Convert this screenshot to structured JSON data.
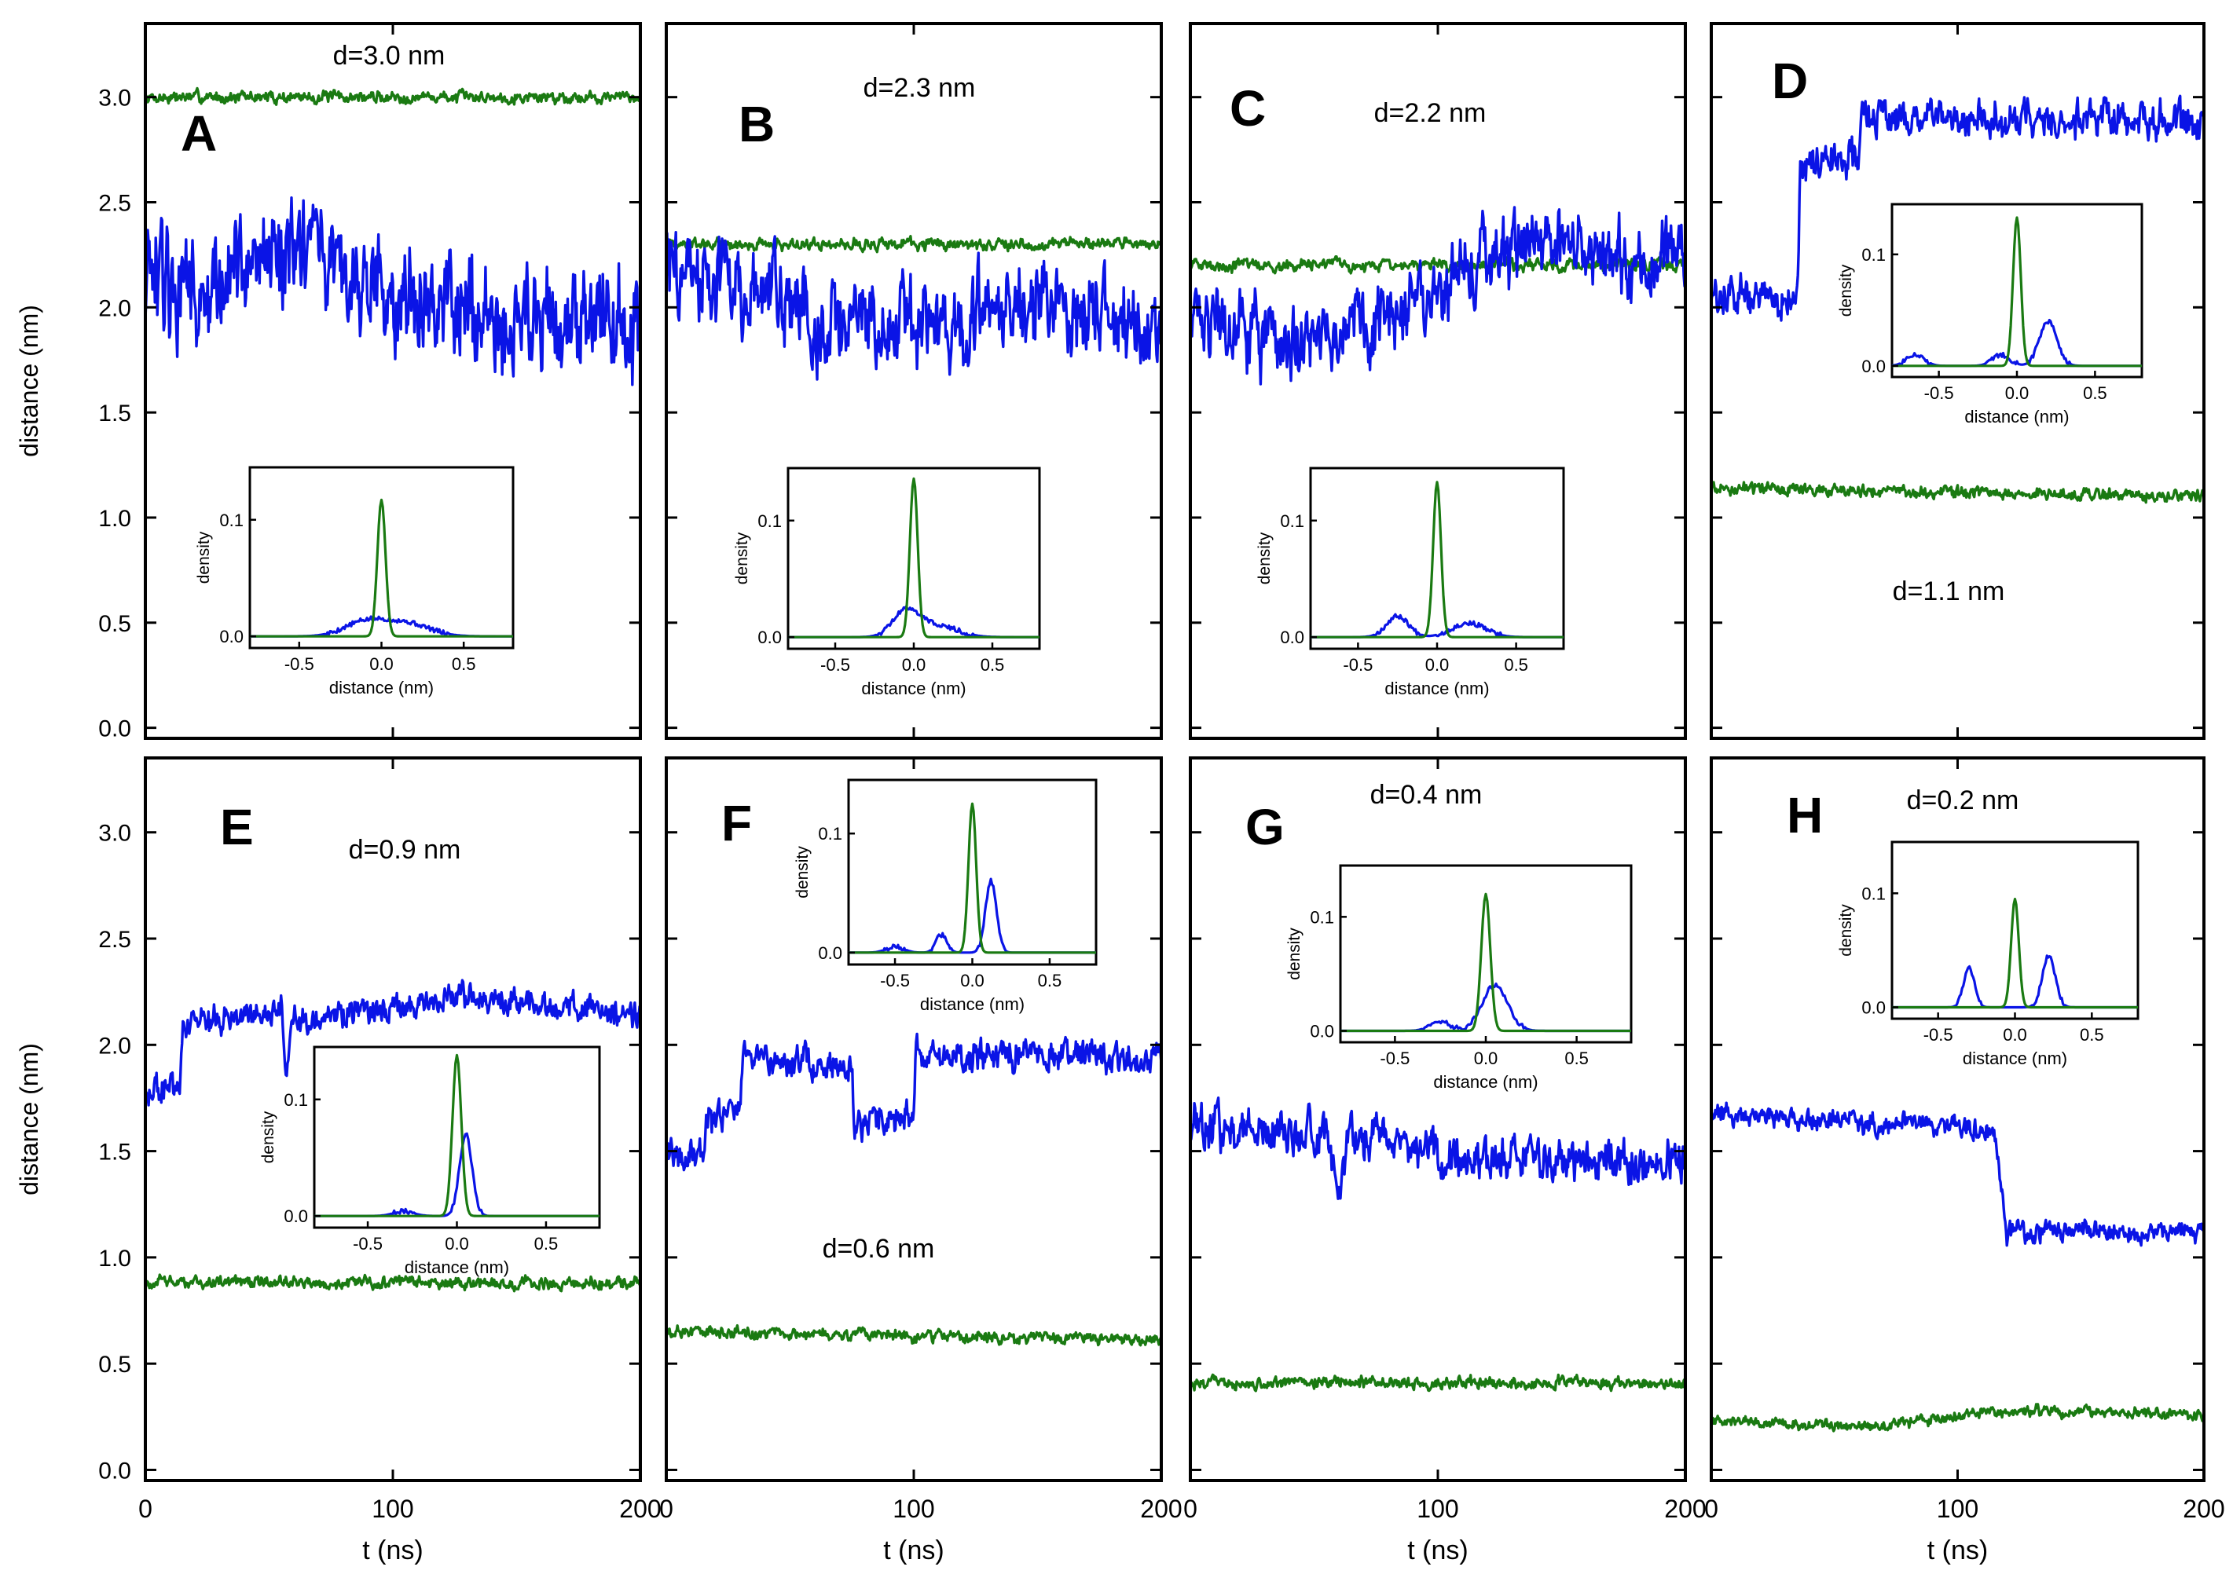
{
  "chart_data": {
    "type": "line",
    "title": "",
    "rows": [
      {
        "ylabel": "distance (nm)",
        "yticks": [
          "0.0",
          "0.5",
          "1.0",
          "1.5",
          "2.0",
          "2.5",
          "3.0"
        ],
        "ylim": [
          -0.05,
          3.35
        ]
      },
      {
        "ylabel": "distance (nm)",
        "yticks": [
          "0.0",
          "0.5",
          "1.0",
          "1.5",
          "2.0",
          "2.5",
          "3.0"
        ],
        "ylim": [
          -0.05,
          3.35
        ]
      }
    ],
    "x_tick_values": [
      0,
      100,
      200
    ],
    "x_tick_labels": [
      "0",
      "100",
      "200"
    ],
    "xlabel": "t (ns)",
    "xlim": [
      0,
      200
    ],
    "colors": {
      "green_series": "#1a7a12",
      "blue_series": "#0a14e6"
    },
    "inset_axes": {
      "xlabel": "distance (nm)",
      "ylabel": "density",
      "xticks": [
        "-0.5",
        "0.0",
        "0.5"
      ],
      "yticks": [
        "0.0",
        "0.1"
      ],
      "xlim": [
        -0.8,
        0.8
      ],
      "ylim": [
        -0.01,
        0.145
      ]
    },
    "panels": [
      {
        "letter": "A",
        "annotation": "d=3.0 nm",
        "green": {
          "level": 3.0,
          "noise": 0.022,
          "segments": [
            [
              0,
              3.0
            ]
          ]
        },
        "blue": {
          "noise": 0.2,
          "segments": [
            [
              0,
              2.1
            ],
            [
              25,
              2.05
            ],
            [
              50,
              2.3
            ],
            [
              100,
              2.05
            ],
            [
              150,
              1.95
            ],
            [
              200,
              1.9
            ]
          ]
        },
        "inset": {
          "green_peak": 0.117,
          "green_center": 0.0,
          "green_width": 0.035,
          "blue_peaks": [
            {
              "center": -0.1,
              "height": 0.012,
              "width": 0.18
            },
            {
              "center": 0.15,
              "height": 0.011,
              "width": 0.2
            }
          ]
        }
      },
      {
        "letter": "B",
        "annotation": "d=2.3 nm",
        "green": {
          "level": 2.3,
          "noise": 0.022,
          "segments": [
            [
              0,
              2.3
            ]
          ]
        },
        "blue": {
          "noise": 0.16,
          "segments": [
            [
              0,
              2.2
            ],
            [
              40,
              2.05
            ],
            [
              70,
              1.9
            ],
            [
              110,
              1.95
            ],
            [
              150,
              2.05
            ],
            [
              200,
              1.85
            ]
          ]
        },
        "inset": {
          "green_peak": 0.136,
          "green_center": 0.0,
          "green_width": 0.035,
          "blue_peaks": [
            {
              "center": -0.05,
              "height": 0.022,
              "width": 0.12
            },
            {
              "center": 0.15,
              "height": 0.01,
              "width": 0.18
            }
          ]
        }
      },
      {
        "letter": "C",
        "annotation": "d=2.2 nm",
        "green": {
          "level": 2.2,
          "noise": 0.022,
          "segments": [
            [
              0,
              2.2
            ]
          ]
        },
        "blue": {
          "noise": 0.13,
          "segments": [
            [
              0,
              2.0
            ],
            [
              40,
              1.8
            ],
            [
              80,
              1.9
            ],
            [
              110,
              2.2
            ],
            [
              140,
              2.3
            ],
            [
              200,
              2.2
            ]
          ]
        },
        "inset": {
          "green_peak": 0.133,
          "green_center": 0.0,
          "green_width": 0.035,
          "blue_peaks": [
            {
              "center": -0.25,
              "height": 0.018,
              "width": 0.1
            },
            {
              "center": 0.2,
              "height": 0.012,
              "width": 0.15
            }
          ]
        }
      },
      {
        "letter": "D",
        "annotation": "d=1.1 nm",
        "green": {
          "level": 1.12,
          "noise": 0.022,
          "segments": [
            [
              0,
              1.14
            ],
            [
              200,
              1.1
            ]
          ]
        },
        "blue": {
          "noise": 0.07,
          "segments": [
            [
              0,
              2.05
            ],
            [
              35,
              2.05
            ],
            [
              36,
              2.65
            ],
            [
              60,
              2.7
            ],
            [
              61,
              2.9
            ],
            [
              200,
              2.9
            ]
          ]
        },
        "inset": {
          "green_peak": 0.133,
          "green_center": 0.0,
          "green_width": 0.035,
          "blue_peaks": [
            {
              "center": -0.65,
              "height": 0.01,
              "width": 0.08
            },
            {
              "center": -0.1,
              "height": 0.01,
              "width": 0.08
            },
            {
              "center": 0.2,
              "height": 0.04,
              "width": 0.08
            }
          ]
        }
      },
      {
        "letter": "E",
        "annotation": "d=0.9 nm",
        "green": {
          "level": 0.88,
          "noise": 0.022,
          "segments": [
            [
              0,
              0.88
            ]
          ]
        },
        "blue": {
          "noise": 0.05,
          "segments": [
            [
              0,
              1.8
            ],
            [
              14,
              1.8
            ],
            [
              15,
              2.1
            ],
            [
              55,
              2.15
            ],
            [
              57,
              1.85
            ],
            [
              60,
              2.12
            ],
            [
              130,
              2.22
            ],
            [
              200,
              2.15
            ]
          ]
        },
        "inset": {
          "green_peak": 0.138,
          "green_center": 0.0,
          "green_width": 0.035,
          "blue_peaks": [
            {
              "center": 0.05,
              "height": 0.07,
              "width": 0.05
            },
            {
              "center": -0.3,
              "height": 0.004,
              "width": 0.08
            }
          ]
        }
      },
      {
        "letter": "F",
        "annotation": "d=0.6 nm",
        "green": {
          "level": 0.63,
          "noise": 0.022,
          "segments": [
            [
              0,
              0.65
            ],
            [
              200,
              0.61
            ]
          ]
        },
        "blue": {
          "noise": 0.06,
          "segments": [
            [
              0,
              1.5
            ],
            [
              15,
              1.45
            ],
            [
              16,
              1.65
            ],
            [
              30,
              1.7
            ],
            [
              31,
              1.95
            ],
            [
              75,
              1.9
            ],
            [
              76,
              1.6
            ],
            [
              100,
              1.7
            ],
            [
              101,
              1.95
            ],
            [
              200,
              1.95
            ]
          ]
        },
        "inset": {
          "green_peak": 0.125,
          "green_center": 0.0,
          "green_width": 0.035,
          "blue_peaks": [
            {
              "center": 0.12,
              "height": 0.06,
              "width": 0.05
            },
            {
              "center": -0.2,
              "height": 0.015,
              "width": 0.05
            },
            {
              "center": -0.5,
              "height": 0.005,
              "width": 0.08
            }
          ]
        }
      },
      {
        "letter": "G",
        "annotation": "d=0.4 nm",
        "green": {
          "level": 0.41,
          "noise": 0.022,
          "segments": [
            [
              0,
              0.41
            ]
          ]
        },
        "blue": {
          "noise": 0.08,
          "segments": [
            [
              0,
              1.6
            ],
            [
              55,
              1.6
            ],
            [
              60,
              1.3
            ],
            [
              65,
              1.6
            ],
            [
              110,
              1.45
            ],
            [
              200,
              1.45
            ]
          ]
        },
        "inset": {
          "green_peak": 0.12,
          "green_center": 0.0,
          "green_width": 0.035,
          "blue_peaks": [
            {
              "center": 0.05,
              "height": 0.04,
              "width": 0.1
            },
            {
              "center": -0.25,
              "height": 0.008,
              "width": 0.08
            }
          ]
        }
      },
      {
        "letter": "H",
        "annotation": "d=0.2 nm",
        "green": {
          "level": 0.25,
          "noise": 0.02,
          "segments": [
            [
              0,
              0.24
            ],
            [
              60,
              0.2
            ],
            [
              120,
              0.28
            ],
            [
              200,
              0.26
            ]
          ]
        },
        "blue": {
          "noise": 0.04,
          "segments": [
            [
              0,
              1.68
            ],
            [
              115,
              1.6
            ],
            [
              120,
              1.12
            ],
            [
              200,
              1.12
            ]
          ]
        },
        "inset": {
          "green_peak": 0.095,
          "green_center": 0.0,
          "green_width": 0.035,
          "blue_peaks": [
            {
              "center": -0.3,
              "height": 0.035,
              "width": 0.05
            },
            {
              "center": 0.22,
              "height": 0.045,
              "width": 0.06
            }
          ]
        }
      }
    ]
  }
}
